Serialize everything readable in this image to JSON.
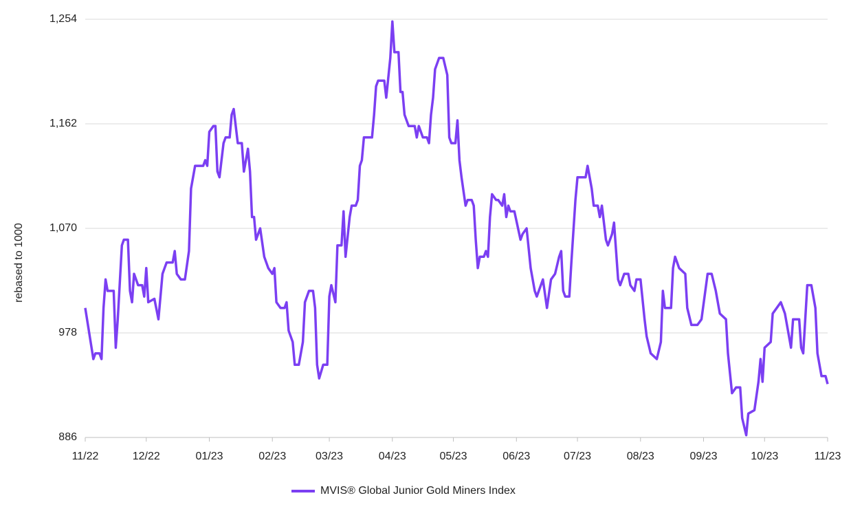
{
  "chart_data": {
    "type": "line",
    "y_label": "rebased to 1000",
    "xlim": [
      0,
      365
    ],
    "xticks": [
      {
        "value": 0,
        "label": "11/22"
      },
      {
        "value": 30,
        "label": "12/22"
      },
      {
        "value": 61,
        "label": "01/23"
      },
      {
        "value": 92,
        "label": "02/23"
      },
      {
        "value": 120,
        "label": "03/23"
      },
      {
        "value": 151,
        "label": "04/23"
      },
      {
        "value": 181,
        "label": "05/23"
      },
      {
        "value": 212,
        "label": "06/23"
      },
      {
        "value": 242,
        "label": "07/23"
      },
      {
        "value": 273,
        "label": "08/23"
      },
      {
        "value": 304,
        "label": "09/23"
      },
      {
        "value": 334,
        "label": "10/23"
      },
      {
        "value": 365,
        "label": "11/23"
      }
    ],
    "ylim": [
      886,
      1254
    ],
    "yticks": [
      886,
      978,
      {
        "value": 1070,
        "label": "1,070"
      },
      {
        "value": 1162,
        "label": "1,162"
      },
      {
        "value": 1254,
        "label": "1,254"
      }
    ],
    "grid": true,
    "legend": "bottom",
    "x": [
      0,
      4,
      5,
      7,
      8,
      9,
      10,
      11,
      14,
      15,
      16,
      18,
      19,
      21,
      22,
      23,
      24,
      26,
      28,
      29,
      30,
      31,
      34,
      36,
      38,
      39,
      40,
      43,
      44,
      45,
      47,
      49,
      51,
      52,
      54,
      58,
      59,
      60,
      61,
      63,
      64,
      65,
      66,
      68,
      69,
      71,
      72,
      73,
      75,
      77,
      78,
      80,
      81,
      82,
      83,
      84,
      86,
      88,
      90,
      92,
      93,
      94,
      96,
      98,
      99,
      100,
      102,
      103,
      105,
      107,
      108,
      110,
      112,
      113,
      114,
      115,
      117,
      119,
      120,
      121,
      123,
      124,
      126,
      127,
      128,
      130,
      131,
      133,
      134,
      135,
      136,
      137,
      141,
      142,
      143,
      144,
      147,
      148,
      150,
      151,
      152,
      154,
      155,
      156,
      157,
      159,
      162,
      163,
      164,
      166,
      168,
      169,
      170,
      171,
      172,
      174,
      176,
      178,
      179,
      180,
      182,
      183,
      184,
      185,
      187,
      188,
      190,
      191,
      192,
      193,
      194,
      196,
      197,
      198,
      199,
      200,
      202,
      203,
      205,
      206,
      207,
      208,
      209,
      211,
      214,
      215,
      217,
      219,
      221,
      222,
      225,
      227,
      229,
      231,
      233,
      234,
      235,
      236,
      238,
      239,
      241,
      242,
      246,
      247,
      249,
      250,
      252,
      253,
      254,
      256,
      257,
      259,
      260,
      262,
      263,
      265,
      267,
      268,
      270,
      271,
      273,
      275,
      276,
      278,
      281,
      283,
      284,
      285,
      288,
      289,
      290,
      292,
      295,
      296,
      298,
      301,
      303,
      306,
      308,
      310,
      312,
      315,
      316,
      318,
      320,
      322,
      323,
      325,
      326,
      329,
      331,
      332,
      333,
      334,
      337,
      338,
      340,
      342,
      344,
      346,
      347,
      348,
      351,
      352,
      353,
      355,
      357,
      359,
      360,
      362,
      364,
      365
    ],
    "series": [
      {
        "name": "MVIS® Global Junior Gold Miners Index",
        "color": "#7b3ff2",
        "values": [
          1000,
          955,
          960,
          960,
          955,
          1000,
          1025,
          1015,
          1015,
          965,
          990,
          1055,
          1060,
          1060,
          1015,
          1005,
          1030,
          1020,
          1020,
          1010,
          1035,
          1005,
          1008,
          990,
          1030,
          1035,
          1040,
          1040,
          1050,
          1030,
          1025,
          1025,
          1050,
          1105,
          1125,
          1125,
          1130,
          1125,
          1155,
          1160,
          1160,
          1120,
          1115,
          1145,
          1150,
          1150,
          1170,
          1175,
          1145,
          1145,
          1120,
          1140,
          1120,
          1080,
          1080,
          1060,
          1070,
          1045,
          1035,
          1030,
          1035,
          1005,
          1000,
          1000,
          1005,
          980,
          970,
          950,
          950,
          970,
          1005,
          1015,
          1015,
          1000,
          950,
          938,
          950,
          950,
          1010,
          1020,
          1005,
          1055,
          1055,
          1085,
          1045,
          1080,
          1090,
          1090,
          1095,
          1125,
          1130,
          1150,
          1150,
          1170,
          1195,
          1200,
          1200,
          1185,
          1220,
          1252,
          1225,
          1225,
          1190,
          1190,
          1170,
          1160,
          1160,
          1150,
          1160,
          1150,
          1150,
          1145,
          1170,
          1185,
          1210,
          1220,
          1220,
          1205,
          1150,
          1145,
          1145,
          1165,
          1130,
          1115,
          1090,
          1095,
          1095,
          1090,
          1060,
          1035,
          1045,
          1045,
          1050,
          1045,
          1080,
          1100,
          1095,
          1095,
          1090,
          1100,
          1080,
          1090,
          1085,
          1085,
          1060,
          1065,
          1070,
          1035,
          1015,
          1010,
          1025,
          1000,
          1025,
          1030,
          1045,
          1050,
          1015,
          1010,
          1010,
          1040,
          1095,
          1115,
          1115,
          1125,
          1105,
          1090,
          1090,
          1080,
          1090,
          1060,
          1055,
          1065,
          1075,
          1025,
          1020,
          1030,
          1030,
          1020,
          1015,
          1025,
          1025,
          990,
          975,
          960,
          955,
          970,
          1015,
          1000,
          1000,
          1035,
          1045,
          1035,
          1030,
          1000,
          985,
          985,
          990,
          1030,
          1030,
          1015,
          995,
          990,
          960,
          925,
          930,
          930,
          903,
          888,
          907,
          910,
          935,
          955,
          935,
          965,
          970,
          995,
          1000,
          1005,
          995,
          975,
          965,
          990,
          990,
          965,
          960,
          1020,
          1020,
          1000,
          960,
          940,
          940,
          933
        ]
      }
    ]
  }
}
